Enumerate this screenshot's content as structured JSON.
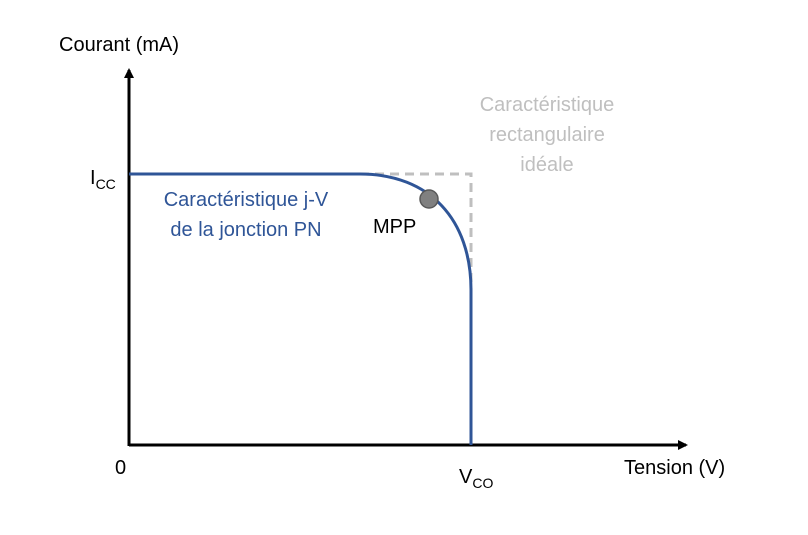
{
  "axes": {
    "y_label": "Courant (mA)",
    "x_label": "Tension (V)",
    "origin_label": "0",
    "isc": {
      "main": "I",
      "sub": "CC"
    },
    "voc": {
      "main": "V",
      "sub": "CO"
    }
  },
  "curve_label": {
    "line1": "Caractéristique j-V",
    "line2": "de la jonction PN"
  },
  "ideal_label": {
    "line1": "Caractéristique",
    "line2": "rectangulaire",
    "line3": "idéale"
  },
  "mpp_label": "MPP",
  "colors": {
    "curve": "#2F5597",
    "ideal": "#BFBFBF",
    "axis": "#000000",
    "mpp_fill": "#808080",
    "mpp_stroke": "#595959"
  }
}
